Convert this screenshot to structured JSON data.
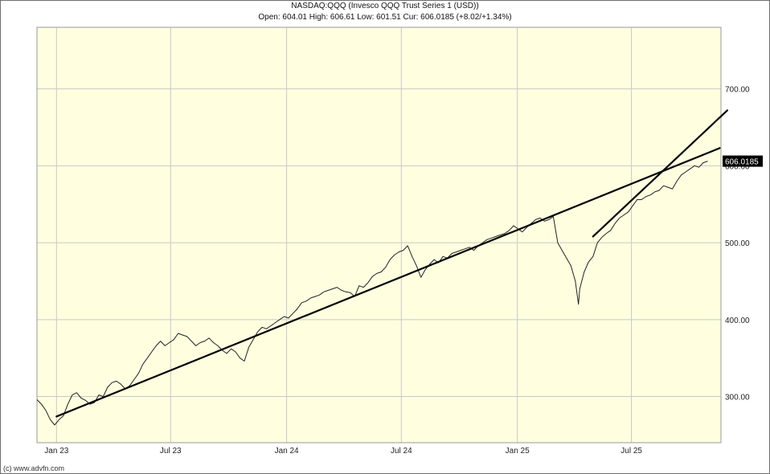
{
  "header": {
    "title": "NASDAQ:QQQ (Invesco QQQ Trust Series 1 (USD))",
    "subtitle": "Open: 604.01 High: 606.61 Low: 601.51 Cur: 606.0185 (+8.02/+1.34%)"
  },
  "footer": {
    "credit": "(c) www.advfn.com"
  },
  "colors": {
    "plot_background": "#ffffe0",
    "grid": "#c8c8c8",
    "price_line": "#222222",
    "trend_line": "#000000",
    "current_price_tag_bg": "#000000",
    "current_price_tag_text": "#ffffff"
  },
  "chart_data": {
    "type": "line",
    "x_axis": {
      "type": "date",
      "range": [
        "2022-12-01",
        "2025-11-20"
      ],
      "tick_labels": [
        "Jan 23",
        "Jul 23",
        "Jan 24",
        "Jul 24",
        "Jan 25",
        "Jul 25"
      ],
      "tick_dates": [
        "2023-01-01",
        "2023-07-01",
        "2024-01-01",
        "2024-07-01",
        "2025-01-01",
        "2025-07-01"
      ]
    },
    "y_axis": {
      "range": [
        240,
        780
      ],
      "tick_labels": [
        "300.00",
        "400.00",
        "500.00",
        "600.00",
        "700.00"
      ],
      "ticks": [
        300,
        400,
        500,
        600,
        700
      ],
      "position": "right"
    },
    "grid": true,
    "current_price": {
      "label": "606.0185",
      "value": 606.0185
    },
    "series": [
      {
        "x": [
          "2022-12-01",
          "2022-12-08",
          "2022-12-15",
          "2022-12-22",
          "2022-12-29",
          "2023-01-05",
          "2023-01-12",
          "2023-01-19",
          "2023-01-26",
          "2023-02-02",
          "2023-02-09",
          "2023-02-16",
          "2023-02-23",
          "2023-03-02",
          "2023-03-09",
          "2023-03-16",
          "2023-03-23",
          "2023-03-30",
          "2023-04-06",
          "2023-04-13",
          "2023-04-20",
          "2023-04-27",
          "2023-05-04",
          "2023-05-11",
          "2023-05-18",
          "2023-05-25",
          "2023-06-01",
          "2023-06-08",
          "2023-06-15",
          "2023-06-22",
          "2023-06-29",
          "2023-07-06",
          "2023-07-13",
          "2023-07-20",
          "2023-07-27",
          "2023-08-03",
          "2023-08-10",
          "2023-08-17",
          "2023-08-24",
          "2023-08-31",
          "2023-09-07",
          "2023-09-14",
          "2023-09-21",
          "2023-09-28",
          "2023-10-05",
          "2023-10-12",
          "2023-10-19",
          "2023-10-26",
          "2023-11-02",
          "2023-11-09",
          "2023-11-16",
          "2023-11-23",
          "2023-11-30",
          "2023-12-07",
          "2023-12-14",
          "2023-12-21",
          "2023-12-28",
          "2024-01-04",
          "2024-01-11",
          "2024-01-18",
          "2024-01-25",
          "2024-02-01",
          "2024-02-08",
          "2024-02-15",
          "2024-02-22",
          "2024-02-29",
          "2024-03-07",
          "2024-03-14",
          "2024-03-21",
          "2024-03-28",
          "2024-04-04",
          "2024-04-11",
          "2024-04-18",
          "2024-04-25",
          "2024-05-02",
          "2024-05-09",
          "2024-05-16",
          "2024-05-23",
          "2024-05-30",
          "2024-06-06",
          "2024-06-13",
          "2024-06-20",
          "2024-06-27",
          "2024-07-04",
          "2024-07-11",
          "2024-07-18",
          "2024-07-25",
          "2024-08-01",
          "2024-08-08",
          "2024-08-15",
          "2024-08-22",
          "2024-08-29",
          "2024-09-05",
          "2024-09-12",
          "2024-09-19",
          "2024-09-26",
          "2024-10-03",
          "2024-10-10",
          "2024-10-17",
          "2024-10-24",
          "2024-10-31",
          "2024-11-07",
          "2024-11-14",
          "2024-11-21",
          "2024-11-28",
          "2024-12-05",
          "2024-12-12",
          "2024-12-19",
          "2024-12-26",
          "2025-01-02",
          "2025-01-09",
          "2025-01-16",
          "2025-01-23",
          "2025-01-30",
          "2025-02-06",
          "2025-02-13",
          "2025-02-20",
          "2025-02-27",
          "2025-03-06",
          "2025-03-13",
          "2025-03-20",
          "2025-03-27",
          "2025-04-03",
          "2025-04-08",
          "2025-04-10",
          "2025-04-17",
          "2025-04-24",
          "2025-05-01",
          "2025-05-08",
          "2025-05-15",
          "2025-05-22",
          "2025-05-29",
          "2025-06-05",
          "2025-06-12",
          "2025-06-19",
          "2025-06-26",
          "2025-07-03",
          "2025-07-10",
          "2025-07-17",
          "2025-07-24",
          "2025-07-31",
          "2025-08-07",
          "2025-08-14",
          "2025-08-21",
          "2025-08-28",
          "2025-09-04",
          "2025-09-11",
          "2025-09-18",
          "2025-09-25",
          "2025-10-02",
          "2025-10-09",
          "2025-10-16",
          "2025-10-23",
          "2025-10-30"
        ],
        "y": [
          296,
          290,
          282,
          270,
          263,
          270,
          275,
          290,
          302,
          305,
          298,
          295,
          290,
          292,
          302,
          300,
          312,
          318,
          320,
          316,
          310,
          314,
          322,
          330,
          342,
          350,
          358,
          366,
          372,
          366,
          370,
          374,
          382,
          380,
          378,
          372,
          366,
          370,
          372,
          376,
          370,
          366,
          360,
          356,
          362,
          358,
          350,
          346,
          364,
          374,
          384,
          390,
          388,
          392,
          396,
          400,
          404,
          402,
          408,
          414,
          422,
          424,
          428,
          430,
          432,
          436,
          438,
          440,
          442,
          438,
          436,
          435,
          430,
          444,
          442,
          448,
          456,
          460,
          462,
          468,
          478,
          484,
          488,
          490,
          496,
          482,
          470,
          455,
          465,
          472,
          478,
          474,
          482,
          480,
          486,
          488,
          490,
          492,
          494,
          490,
          496,
          500,
          504,
          506,
          508,
          510,
          512,
          516,
          522,
          518,
          514,
          520,
          525,
          530,
          532,
          528,
          530,
          534,
          500,
          490,
          480,
          470,
          450,
          420,
          440,
          462,
          475,
          482,
          500,
          507,
          512,
          516,
          525,
          532,
          536,
          540,
          548,
          556,
          556,
          560,
          562,
          566,
          568,
          574,
          572,
          570,
          580,
          588,
          592,
          596,
          600,
          598,
          604,
          606
        ]
      }
    ],
    "trend_lines": [
      {
        "x": [
          "2023-01-01",
          "2025-11-18"
        ],
        "y": [
          274,
          623
        ]
      },
      {
        "x": [
          "2025-05-01",
          "2025-11-30"
        ],
        "y": [
          508,
          672
        ]
      }
    ]
  }
}
